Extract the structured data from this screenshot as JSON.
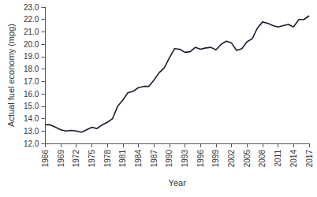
{
  "chart_data": {
    "type": "line",
    "x_label": "Year",
    "y_label": "Actual fuel economy (mpg)",
    "x": [
      1966,
      1967,
      1968,
      1969,
      1970,
      1971,
      1972,
      1973,
      1974,
      1975,
      1976,
      1977,
      1978,
      1979,
      1980,
      1981,
      1982,
      1983,
      1984,
      1985,
      1986,
      1987,
      1988,
      1989,
      1990,
      1991,
      1992,
      1993,
      1994,
      1995,
      1996,
      1997,
      1998,
      1999,
      2000,
      2001,
      2002,
      2003,
      2004,
      2005,
      2006,
      2007,
      2008,
      2009,
      2010,
      2011,
      2012,
      2013,
      2014,
      2015,
      2016,
      2017
    ],
    "values": [
      13.5,
      13.5,
      13.3,
      13.1,
      13.0,
      13.05,
      13.0,
      12.9,
      13.1,
      13.3,
      13.2,
      13.5,
      13.7,
      14.0,
      15.0,
      15.5,
      16.1,
      16.2,
      16.5,
      16.6,
      16.6,
      17.1,
      17.7,
      18.1,
      18.9,
      19.65,
      19.6,
      19.35,
      19.4,
      19.75,
      19.6,
      19.7,
      19.75,
      19.55,
      20.0,
      20.25,
      20.1,
      19.5,
      19.65,
      20.2,
      20.45,
      21.3,
      21.8,
      21.7,
      21.5,
      21.4,
      21.5,
      21.6,
      21.4,
      22.0,
      22.0,
      22.3
    ],
    "color": "#1a1a2e",
    "xlim": [
      1966,
      2017
    ],
    "xticks": [
      1966,
      1969,
      1972,
      1975,
      1978,
      1981,
      1984,
      1987,
      1990,
      1993,
      1996,
      1999,
      2002,
      2005,
      2008,
      2011,
      2014,
      2017
    ],
    "ylim": [
      12,
      23
    ],
    "yticks": [
      {
        "value": 12,
        "label": "12.0"
      },
      {
        "value": 13,
        "label": "13.0"
      },
      {
        "value": 14,
        "label": "14.0"
      },
      {
        "value": 15,
        "label": "15.0"
      },
      {
        "value": 16,
        "label": "16.0"
      },
      {
        "value": 17,
        "label": "17.0"
      },
      {
        "value": 18,
        "label": "18.0"
      },
      {
        "value": 19,
        "label": "19.0"
      },
      {
        "value": 20,
        "label": "20.0"
      },
      {
        "value": 21,
        "label": "21.0"
      },
      {
        "value": 22,
        "label": "22.0"
      },
      {
        "value": 23,
        "label": "23.0"
      }
    ],
    "grid": false
  }
}
